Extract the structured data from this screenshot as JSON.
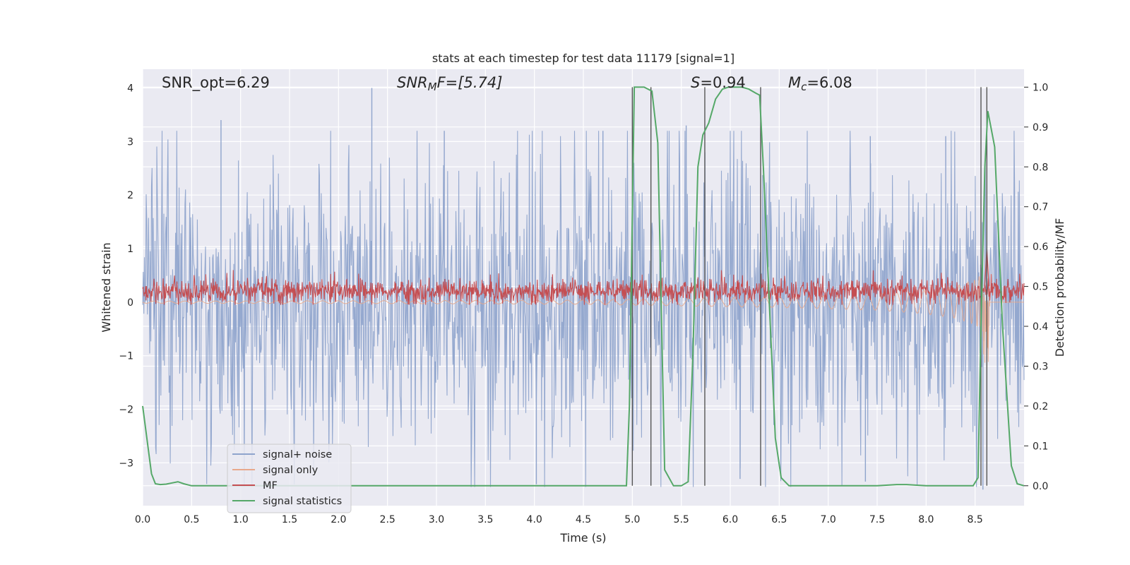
{
  "chart_data": {
    "type": "line",
    "title": "stats at each timestep for test data 11179 [signal=1]",
    "xlabel": "Time (s)",
    "ylabel_left": "Whitened strain",
    "ylabel_right": "Detection probability/MF",
    "xlim": [
      0.0,
      9.0
    ],
    "ylim_left": [
      -3.8,
      4.35
    ],
    "ylim_right": [
      -0.05,
      1.045
    ],
    "x_ticks": [
      "0.0",
      "0.5",
      "1.0",
      "1.5",
      "2.0",
      "2.5",
      "3.0",
      "3.5",
      "4.0",
      "4.5",
      "5.0",
      "5.5",
      "6.0",
      "6.5",
      "7.0",
      "7.5",
      "8.0",
      "8.5"
    ],
    "y_ticks_left": [
      "4",
      "3",
      "2",
      "1",
      "0",
      "−1",
      "−2",
      "−3"
    ],
    "y_ticks_right": [
      "1.0",
      "0.9",
      "0.8",
      "0.7",
      "0.6",
      "0.5",
      "0.4",
      "0.3",
      "0.2",
      "0.1",
      "0.0"
    ],
    "grid": true,
    "legend_position": "lower-left",
    "annotations": {
      "snr_opt": "SNR_opt=6.29",
      "snr_mf_sym": "SNR",
      "snr_mf_sub": "M",
      "snr_mf_rest": "F=[5.74]",
      "s_sym": "S",
      "s_rest": "=0.94",
      "mc_sym": "M",
      "mc_sub": "c",
      "mc_rest": "=6.08"
    },
    "series": [
      {
        "name": "signal+ noise",
        "axis": "left",
        "color": "#8fa4cc",
        "style": "dense noise, band roughly ±1.2 with spikes up to about ±3.5",
        "peak_spikes": [
          [
            0.8,
            3.4
          ],
          [
            2.34,
            4.0
          ],
          [
            3.08,
            3.2
          ],
          [
            4.7,
            3.2
          ],
          [
            5.55,
            3.3
          ],
          [
            7.43,
            3.1
          ],
          [
            8.2,
            3.1
          ],
          [
            4.02,
            -3.4
          ],
          [
            6.1,
            -3.3
          ],
          [
            7.38,
            -3.35
          ],
          [
            8.58,
            -3.5
          ]
        ]
      },
      {
        "name": "signal only",
        "axis": "left",
        "color": "#e8a88c",
        "style": "chirp envelope growing toward merger near t=8.62 s",
        "envelope": [
          [
            0.0,
            0.02
          ],
          [
            3.0,
            0.03
          ],
          [
            4.5,
            0.04
          ],
          [
            5.5,
            0.07
          ],
          [
            6.5,
            0.1
          ],
          [
            7.5,
            0.15
          ],
          [
            8.0,
            0.22
          ],
          [
            8.3,
            0.3
          ],
          [
            8.5,
            0.42
          ],
          [
            8.6,
            0.6
          ],
          [
            8.63,
            0.85
          ],
          [
            8.65,
            0.0
          ]
        ]
      },
      {
        "name": "MF",
        "axis": "left",
        "color": "#c44e52",
        "style": "noisy band around 0.2, amplitude about ±0.25, peak near t=8.62",
        "baseline": 0.2,
        "peak": [
          8.62,
          1.0
        ]
      },
      {
        "name": "signal statistics",
        "axis": "right",
        "color": "#55a868",
        "x": [
          0.0,
          0.09,
          0.13,
          0.18,
          0.24,
          0.3,
          0.36,
          0.42,
          0.5,
          1.0,
          2.0,
          3.0,
          4.0,
          4.5,
          4.94,
          4.97,
          5.02,
          5.06,
          5.12,
          5.2,
          5.26,
          5.33,
          5.42,
          5.5,
          5.57,
          5.62,
          5.67,
          5.72,
          5.78,
          5.85,
          5.92,
          5.98,
          6.05,
          6.12,
          6.19,
          6.26,
          6.3,
          6.34,
          6.4,
          6.46,
          6.52,
          6.6,
          7.0,
          7.5,
          7.7,
          7.8,
          8.0,
          8.48,
          8.53,
          8.56,
          8.6,
          8.63,
          8.7,
          8.78,
          8.87,
          8.93,
          9.0
        ],
        "y": [
          0.2,
          0.03,
          0.005,
          0.003,
          0.004,
          0.007,
          0.01,
          0.005,
          0.0,
          0.0,
          0.0,
          0.0,
          0.0,
          0.0,
          0.0,
          0.2,
          1.0,
          1.0,
          1.0,
          0.99,
          0.86,
          0.04,
          0.0,
          0.0,
          0.01,
          0.34,
          0.8,
          0.88,
          0.91,
          0.97,
          0.995,
          1.0,
          1.0,
          1.0,
          0.995,
          0.985,
          0.98,
          0.79,
          0.45,
          0.12,
          0.02,
          0.0,
          0.0,
          0.0,
          0.003,
          0.003,
          0.0,
          0.0,
          0.02,
          0.4,
          0.8,
          0.94,
          0.85,
          0.4,
          0.05,
          0.005,
          0.0
        ]
      }
    ],
    "vertical_markers": [
      5.0,
      5.19,
      5.74,
      6.31,
      8.56,
      8.62
    ]
  }
}
